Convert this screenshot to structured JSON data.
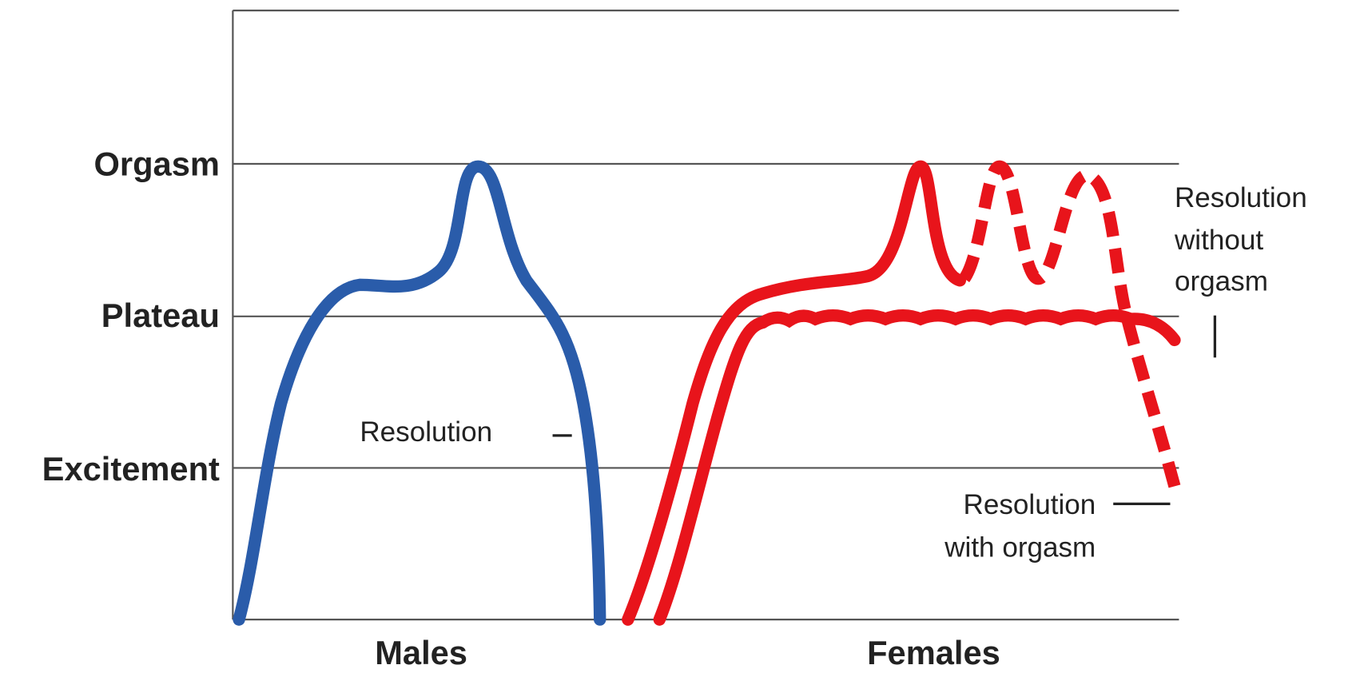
{
  "y_labels": [
    "Orgasm",
    "Plateau",
    "Excitement"
  ],
  "groups": [
    "Males",
    "Females"
  ],
  "annotations": {
    "male_resolution": "Resolution",
    "female_without": [
      "Resolution",
      "without",
      "orgasm"
    ],
    "female_with": [
      "Resolution",
      "with orgasm"
    ]
  }
}
